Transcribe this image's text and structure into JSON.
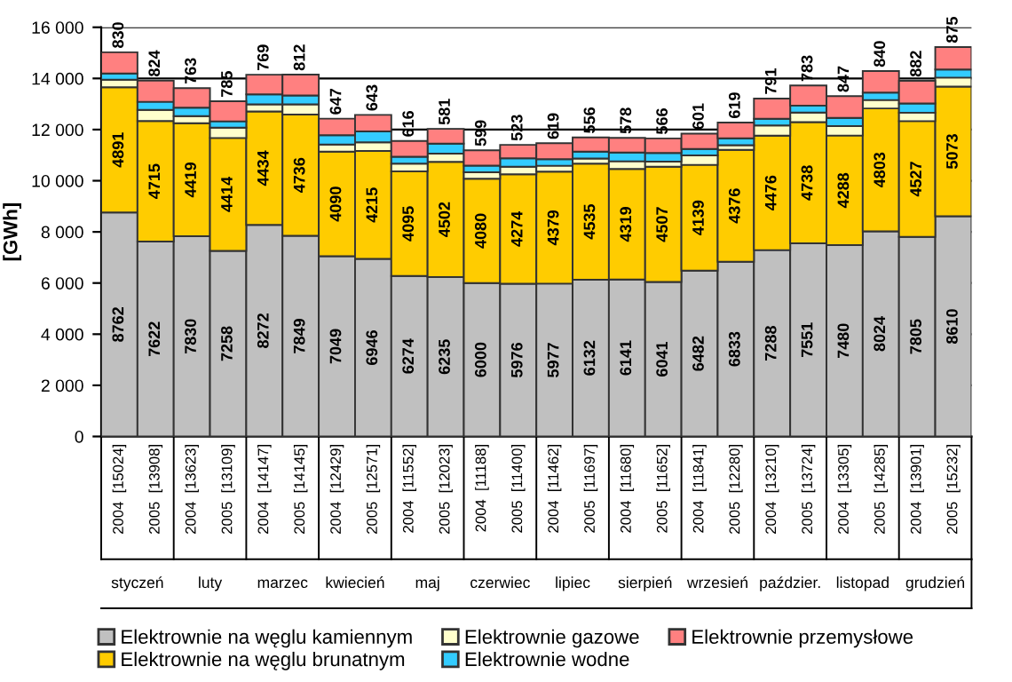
{
  "chart_data": {
    "type": "bar",
    "stacked": true,
    "ylabel": "[GWh]",
    "categories": [
      "2004 [15024]",
      "2005 [13908]",
      "2004 [13623]",
      "2005 [13109]",
      "2004 [14147]",
      "2005 [14145]",
      "2004 [12429]",
      "2005 [12571]",
      "2004 [11552]",
      "2005 [12023]",
      "2004 [11188]",
      "2005 [11400]",
      "2004 [11462]",
      "2005 [11697]",
      "2004 [11680]",
      "2005 [11652]",
      "2004 [11841]",
      "2005 [12280]",
      "2004 [13210]",
      "2005 [13724]",
      "2004 [13305]",
      "2005 [14285]",
      "2004 [13901]",
      "2005 [15232]"
    ],
    "series": [
      {
        "name": "Elektrownie na węglu kamiennym",
        "color": "#c0c0c0",
        "values": [
          8762,
          7622,
          7830,
          7258,
          8272,
          7849,
          7049,
          6946,
          6274,
          6235,
          6000,
          5976,
          5977,
          6132,
          6141,
          6041,
          6482,
          6833,
          7288,
          7551,
          7480,
          8024,
          7805,
          8610
        ],
        "value_labels": [
          "8762",
          "7622",
          "7830",
          "7258",
          "8272",
          "7849",
          "7049",
          "6946",
          "6274",
          "6235",
          "6000",
          "5976",
          "5977",
          "6132",
          "6141",
          "6041",
          "6482",
          "6833",
          "7288",
          "7551",
          "7480",
          "8024",
          "7805",
          "8610"
        ]
      },
      {
        "name": "Elektrownie na węglu brunatnym",
        "color": "#ffcc00",
        "values": [
          4891,
          4715,
          4419,
          4414,
          4434,
          4736,
          4090,
          4215,
          4095,
          4502,
          4080,
          4274,
          4379,
          4535,
          4319,
          4507,
          4139,
          4376,
          4476,
          4738,
          4288,
          4803,
          4527,
          5073
        ],
        "value_labels": [
          "4891",
          "4715",
          "4419",
          "4414",
          "4434",
          "4736",
          "4090",
          "4215",
          "4095",
          "4502",
          "4080",
          "4274",
          "4379",
          "4535",
          "4319",
          "4507",
          "4139",
          "4376",
          "4476",
          "4738",
          "4288",
          "4803",
          "4527",
          "5073"
        ]
      },
      {
        "name": "Elektrownie gazowe",
        "color": "#ffffcc",
        "values": [
          300,
          430,
          280,
          400,
          280,
          400,
          280,
          340,
          300,
          320,
          250,
          300,
          230,
          200,
          300,
          200,
          370,
          180,
          400,
          380,
          370,
          330,
          330,
          350
        ]
      },
      {
        "name": "Elektrownie wodne",
        "color": "#33ccff",
        "values": [
          240,
          320,
          330,
          250,
          390,
          350,
          360,
          430,
          270,
          390,
          260,
          330,
          260,
          270,
          340,
          340,
          250,
          270,
          260,
          270,
          320,
          290,
          360,
          320
        ]
      },
      {
        "name": "Elektrownie przemysłowe",
        "color": "#ff8080",
        "values": [
          830,
          824,
          763,
          785,
          769,
          812,
          647,
          643,
          616,
          581,
          599,
          523,
          619,
          556,
          578,
          566,
          601,
          619,
          791,
          783,
          847,
          840,
          882,
          875
        ],
        "value_labels": [
          "830",
          "824",
          "763",
          "785",
          "769",
          "812",
          "647",
          "643",
          "616",
          "581",
          "599",
          "523",
          "619",
          "556",
          "578",
          "566",
          "601",
          "619",
          "791",
          "783",
          "847",
          "840",
          "882",
          "875"
        ]
      }
    ],
    "ylim": [
      0,
      16000
    ],
    "yticks": [
      {
        "value": 0,
        "label": "0"
      },
      {
        "value": 2000,
        "label": "2 000"
      },
      {
        "value": 4000,
        "label": "4 000"
      },
      {
        "value": 6000,
        "label": "6 000"
      },
      {
        "value": 8000,
        "label": "8 000"
      },
      {
        "value": 10000,
        "label": "10 000"
      },
      {
        "value": 12000,
        "label": "12 000"
      },
      {
        "value": 14000,
        "label": "14 000"
      },
      {
        "value": 16000,
        "label": "16 000"
      }
    ],
    "annotations": [
      "styczeń",
      "luty",
      "marzec",
      "kwiecień",
      "maj",
      "czerwiec",
      "lipiec",
      "sierpień",
      "wrzesień",
      "paździer.",
      "listopad",
      "grudzień"
    ],
    "grid": "y",
    "legend": "bottom"
  }
}
